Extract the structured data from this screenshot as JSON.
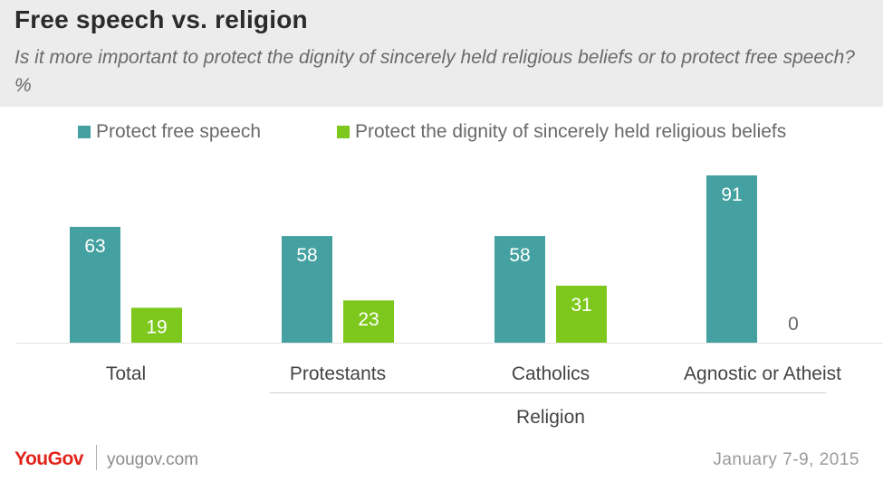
{
  "header": {
    "title": "Free speech vs. religion",
    "subtitle": "Is it more important to protect the dignity of sincerely held religious beliefs or to protect free speech? %"
  },
  "legend": {
    "items": [
      {
        "label": "Protect free speech",
        "color": "#45a1a1"
      },
      {
        "label": "Protect the dignity of sincerely held religious beliefs",
        "color": "#7ec81e"
      }
    ]
  },
  "chart_data": {
    "type": "bar",
    "categories": [
      "Total",
      "Protestants",
      "Catholics",
      "Agnostic or Atheist"
    ],
    "group_label": "Religion",
    "group_categories": [
      "Protestants",
      "Catholics",
      "Agnostic or Atheist"
    ],
    "series": [
      {
        "name": "Protect free speech",
        "values": [
          63,
          58,
          58,
          91
        ],
        "color": "#45a1a1"
      },
      {
        "name": "Protect the dignity of sincerely held religious beliefs",
        "values": [
          19,
          23,
          31,
          0
        ],
        "color": "#7ec81e"
      }
    ],
    "ylim": [
      0,
      100
    ],
    "grid": false,
    "legend_position": "top",
    "data_labels": true
  },
  "footer": {
    "brand": "YouGov",
    "url": "yougov.com",
    "date": "January 7-9, 2015"
  }
}
